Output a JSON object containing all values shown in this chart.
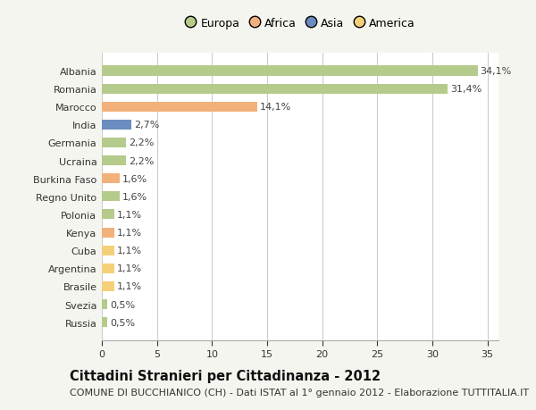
{
  "countries": [
    "Russia",
    "Svezia",
    "Brasile",
    "Argentina",
    "Cuba",
    "Kenya",
    "Polonia",
    "Regno Unito",
    "Burkina Faso",
    "Ucraina",
    "Germania",
    "India",
    "Marocco",
    "Romania",
    "Albania"
  ],
  "values": [
    0.5,
    0.5,
    1.1,
    1.1,
    1.1,
    1.1,
    1.1,
    1.6,
    1.6,
    2.2,
    2.2,
    2.7,
    14.1,
    31.4,
    34.1
  ],
  "labels": [
    "0,5%",
    "0,5%",
    "1,1%",
    "1,1%",
    "1,1%",
    "1,1%",
    "1,1%",
    "1,6%",
    "1,6%",
    "2,2%",
    "2,2%",
    "2,7%",
    "14,1%",
    "31,4%",
    "34,1%"
  ],
  "continents": [
    "Europa",
    "Europa",
    "America",
    "America",
    "America",
    "Africa",
    "Europa",
    "Europa",
    "Africa",
    "Europa",
    "Europa",
    "Asia",
    "Africa",
    "Europa",
    "Europa"
  ],
  "continent_colors": {
    "Europa": "#b5cb8b",
    "Africa": "#f2b07a",
    "Asia": "#6b8cbf",
    "America": "#f5d07a"
  },
  "legend_order": [
    "Europa",
    "Africa",
    "Asia",
    "America"
  ],
  "legend_colors": [
    "#b5cb8b",
    "#f2b07a",
    "#6b8cbf",
    "#f5d07a"
  ],
  "title": "Cittadini Stranieri per Cittadinanza - 2012",
  "subtitle": "COMUNE DI BUCCHIANICO (CH) - Dati ISTAT al 1° gennaio 2012 - Elaborazione TUTTITALIA.IT",
  "xlim": [
    0,
    36
  ],
  "xticks": [
    0,
    5,
    10,
    15,
    20,
    25,
    30,
    35
  ],
  "plot_bg": "#ffffff",
  "fig_bg": "#f5f5f0",
  "bar_height": 0.55,
  "title_fontsize": 10.5,
  "subtitle_fontsize": 8,
  "label_fontsize": 8,
  "tick_fontsize": 8
}
